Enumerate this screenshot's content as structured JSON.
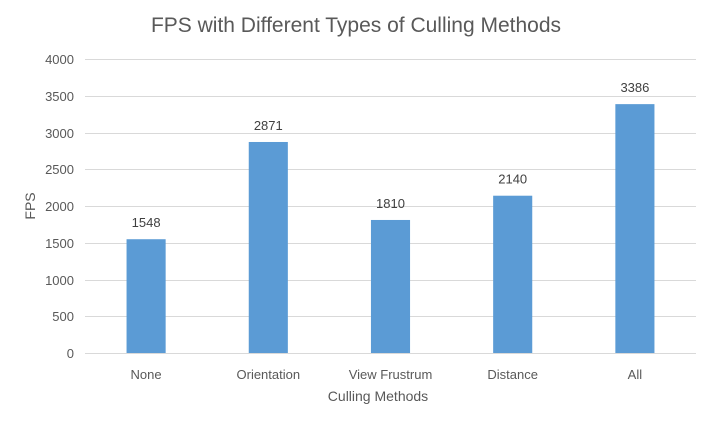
{
  "chart_data": {
    "type": "bar",
    "title": "FPS with Different Types of Culling Methods",
    "xlabel": "Culling Methods",
    "ylabel": "FPS",
    "categories": [
      "None",
      "Orientation",
      "View Frustrum",
      "Distance",
      "All"
    ],
    "values": [
      1548,
      2871,
      1810,
      2140,
      3386
    ],
    "data_labels": [
      "1548",
      "2871",
      "1810",
      "2140",
      "3386"
    ],
    "ylim": [
      0,
      4000
    ],
    "yticks": [
      0,
      500,
      1000,
      1500,
      2000,
      2500,
      3000,
      3500,
      4000
    ],
    "grid": true,
    "legend": "none",
    "bar_color": "#5b9bd5"
  }
}
